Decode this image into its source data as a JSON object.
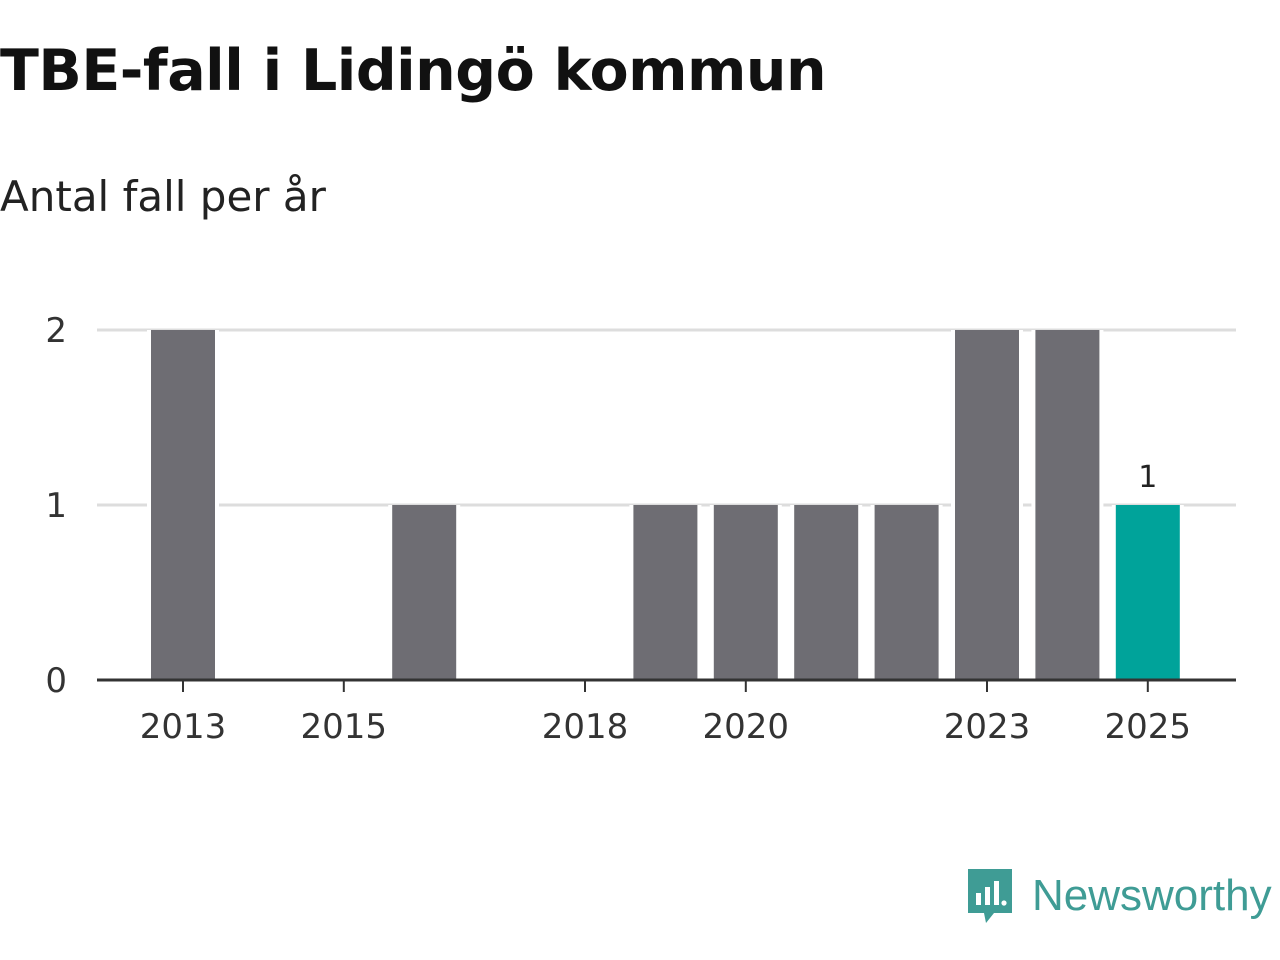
{
  "chart_data": {
    "type": "bar",
    "title": "TBE-fall i Lidingö kommun",
    "subtitle": "Antal fall per år",
    "categories": [
      "2013",
      "2014",
      "2015",
      "2016",
      "2017",
      "2018",
      "2019",
      "2020",
      "2021",
      "2022",
      "2023",
      "2024",
      "2025"
    ],
    "values": [
      2,
      0,
      0,
      1,
      0,
      0,
      1,
      1,
      1,
      1,
      2,
      2,
      1
    ],
    "x_tick_labels": [
      "2013",
      "2015",
      "2018",
      "2020",
      "2023",
      "2025"
    ],
    "y_ticks": [
      0,
      1,
      2
    ],
    "ylim": [
      0,
      2
    ],
    "xlabel": "",
    "ylabel": "",
    "grid": true,
    "highlight_index": 12,
    "data_labels": [
      {
        "index": 12,
        "text": "1"
      }
    ],
    "colors": {
      "bar": "#6e6d73",
      "highlight": "#00a39a",
      "grid": "#dddddd",
      "axis": "#333333"
    }
  },
  "branding": {
    "name": "Newsworthy",
    "icon": "newsworthy-logo-icon",
    "color": "#3f9c95"
  }
}
